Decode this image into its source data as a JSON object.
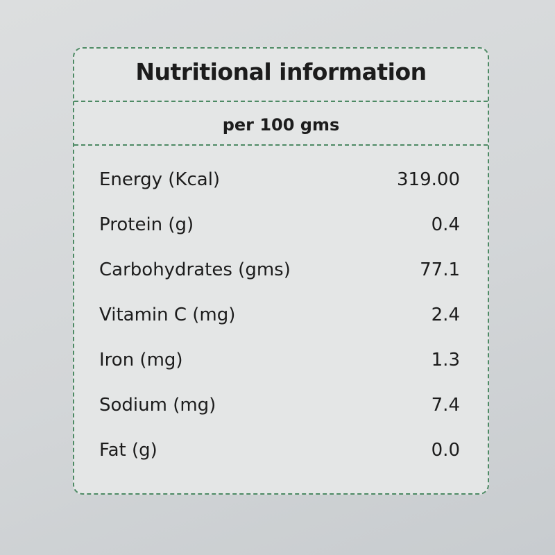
{
  "header": {
    "title": "Nutritional information",
    "subtitle": "per 100 gms"
  },
  "table": {
    "rows": [
      [
        "Energy (Kcal)",
        "319.00"
      ],
      [
        "Protein (g)",
        "0.4"
      ],
      [
        "Carbohydrates (gms)",
        "77.1"
      ],
      [
        "Vitamin C (mg)",
        "2.4"
      ],
      [
        "Iron (mg)",
        "1.3"
      ],
      [
        "Sodium (mg)",
        "7.4"
      ],
      [
        "Fat (g)",
        "0.0"
      ]
    ]
  }
}
